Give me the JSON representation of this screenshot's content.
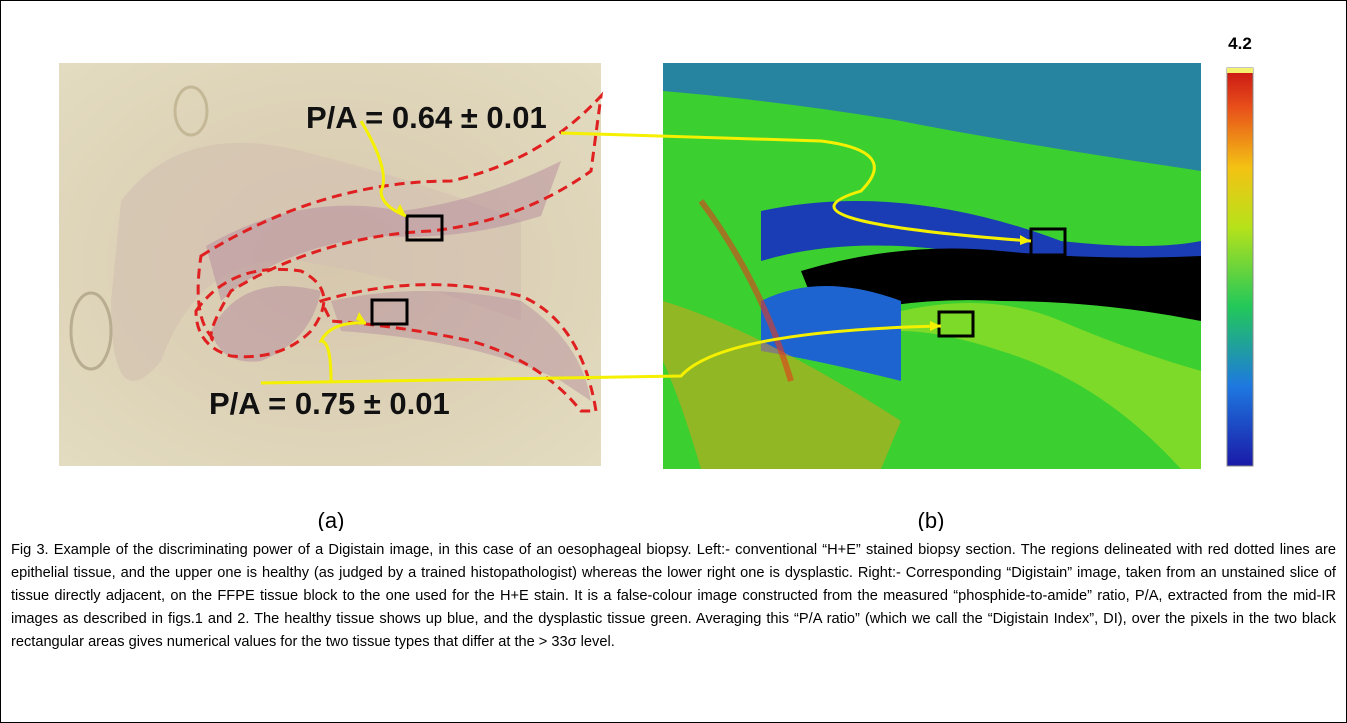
{
  "figure": {
    "label_top": "P/A = 0.64 ± 0.01",
    "label_bottom": "P/A = 0.75 ± 0.01",
    "colorbar_max": "4.2",
    "panel_a": "(a)",
    "panel_b": "(b)",
    "caption": "Fig 3. Example of the discriminating power of a Digistain image, in this case of an oesophageal biopsy. Left:- conventional “H+E” stained biopsy section. The regions delineated with red dotted lines are epithelial tissue, and the upper one is healthy (as judged by a trained histopathologist) whereas the lower right one is dysplastic. Right:- Corresponding “Digistain” image, taken from an unstained slice of tissue directly adjacent, on the FFPE tissue block to the one used for the H+E stain. It is a false-colour image constructed from the measured “phosphide-to-amide” ratio, P/A, extracted from the mid-IR images as described in figs.1 and 2. The healthy tissue shows up blue, and the dysplastic tissue green. Averaging this “P/A ratio” (which we call the “Digistain Index”, DI), over the pixels in the two black rectangular areas gives numerical values for the two tissue types that differ at the > 33σ level."
  }
}
